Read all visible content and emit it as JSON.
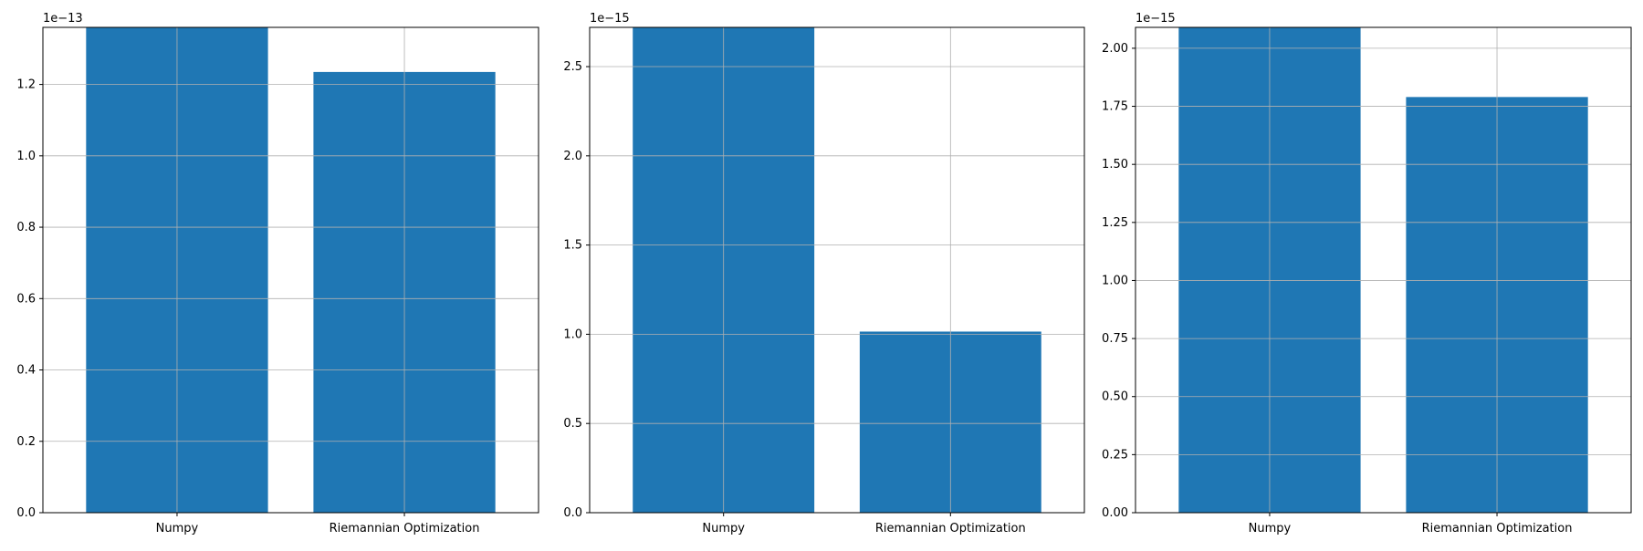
{
  "chart_data": [
    {
      "type": "bar",
      "categories": [
        "Numpy",
        "Riemannian Optimization"
      ],
      "values": [
        1.36e-13,
        1.235e-13
      ],
      "ylim": [
        0,
        1.36e-13
      ],
      "y_ticks": [
        "0.0",
        "0.2",
        "0.4",
        "0.6",
        "0.8",
        "1.0",
        "1.2"
      ],
      "y_tick_values": [
        0.0,
        0.2,
        0.4,
        0.6,
        0.8,
        1.0,
        1.2
      ],
      "scale_label": "1e−13",
      "scale_factor": 1e-13,
      "grid": true,
      "bar_color": "#1f77b4"
    },
    {
      "type": "bar",
      "categories": [
        "Numpy",
        "Riemannian Optimization"
      ],
      "values": [
        2.72e-15,
        1.015e-15
      ],
      "ylim": [
        0,
        2.72e-15
      ],
      "y_ticks": [
        "0.0",
        "0.5",
        "1.0",
        "1.5",
        "2.0",
        "2.5"
      ],
      "y_tick_values": [
        0.0,
        0.5,
        1.0,
        1.5,
        2.0,
        2.5
      ],
      "scale_label": "1e−15",
      "scale_factor": 1e-15,
      "grid": true,
      "bar_color": "#1f77b4"
    },
    {
      "type": "bar",
      "categories": [
        "Numpy",
        "Riemannian Optimization"
      ],
      "values": [
        2.09e-15,
        1.79e-15
      ],
      "ylim": [
        0,
        2.09e-15
      ],
      "y_ticks": [
        "0.00",
        "0.25",
        "0.50",
        "0.75",
        "1.00",
        "1.25",
        "1.50",
        "1.75",
        "2.00"
      ],
      "y_tick_values": [
        0.0,
        0.25,
        0.5,
        0.75,
        1.0,
        1.25,
        1.5,
        1.75,
        2.0
      ],
      "scale_label": "1e−15",
      "scale_factor": 1e-15,
      "grid": true,
      "bar_color": "#1f77b4"
    }
  ]
}
